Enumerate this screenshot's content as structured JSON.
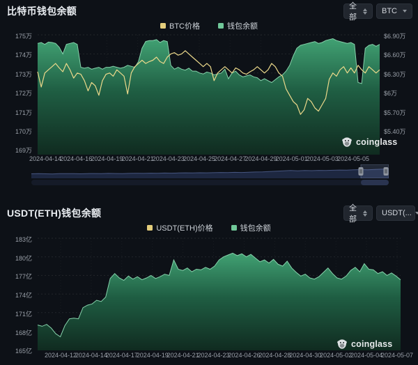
{
  "panels": [
    {
      "title": "比特币钱包余额",
      "controls": {
        "range": "全部",
        "coin": "BTC"
      },
      "legend": [
        {
          "label": "BTC价格",
          "color": "#e3cd7b"
        },
        {
          "label": "钱包余额",
          "color": "#70c899"
        }
      ],
      "watermark": "coinglass"
    },
    {
      "title": "USDT(ETH)钱包余额",
      "controls": {
        "range": "全部",
        "coin": "USDT(..."
      },
      "legend": [
        {
          "label": "USDT(ETH)价格",
          "color": "#e3cd7b"
        },
        {
          "label": "钱包余额",
          "color": "#70c899"
        }
      ],
      "watermark": "coinglass"
    }
  ],
  "icons": {
    "dropdown": "caret-down",
    "range_select": "sort-arrows"
  },
  "chart_data": [
    {
      "type": "area",
      "title": "比特币钱包余额",
      "legend_position": "top",
      "grid": true,
      "x_labels": [
        "2024-04-14",
        "2024-04-16",
        "2024-04-19",
        "2024-04-21",
        "2024-04-23",
        "2024-04-25",
        "2024-04-27",
        "2024-04-29",
        "2024-05-01",
        "2024-05-03",
        "2024-05-05"
      ],
      "y_ticks_left": [
        "175万",
        "174万",
        "173万",
        "172万",
        "171万",
        "170万",
        "169万"
      ],
      "y_ticks_right": [
        "$6.90万",
        "$6.60万",
        "$6.30万",
        "$6万",
        "$5.70万",
        "$5.40万"
      ],
      "y_left_range": [
        169,
        175
      ],
      "y_right_range": [
        5.1,
        6.9
      ],
      "series": [
        {
          "name": "钱包余额",
          "type": "area",
          "color": "#86d2ab",
          "unit": "万",
          "domain": [
            169,
            175
          ],
          "values": [
            174.55,
            174.6,
            174.5,
            174.62,
            174.6,
            174.55,
            174.35,
            174.0,
            174.5,
            174.55,
            174.6,
            174.5,
            173.3,
            173.25,
            173.3,
            173.2,
            173.25,
            173.3,
            173.2,
            173.3,
            173.3,
            173.35,
            173.3,
            173.25,
            173.3,
            173.4,
            173.35,
            173.3,
            173.6,
            174.3,
            174.65,
            174.7,
            174.7,
            174.75,
            174.6,
            174.7,
            174.65,
            173.4,
            173.2,
            173.3,
            173.2,
            173.15,
            173.25,
            173.1,
            173.1,
            173.0,
            172.95,
            173.05,
            173.0,
            172.9,
            172.95,
            173.0,
            173.2,
            172.7,
            173.0,
            173.1,
            172.9,
            172.8,
            172.85,
            172.9,
            172.8,
            172.75,
            172.6,
            172.7,
            172.6,
            172.5,
            172.65,
            172.8,
            172.9,
            173.1,
            173.4,
            173.9,
            174.3,
            174.45,
            174.5,
            174.55,
            174.6,
            174.65,
            174.55,
            174.6,
            174.7,
            174.75,
            174.8,
            174.7,
            174.65,
            174.6,
            174.55,
            174.6,
            174.5,
            172.5,
            172.45,
            174.3,
            174.45,
            174.5,
            174.4,
            174.5
          ]
        },
        {
          "name": "BTC价格",
          "type": "line",
          "color": "#ecd98b",
          "unit": "万USD",
          "domain": [
            5.1,
            6.9
          ],
          "values": [
            6.32,
            6.08,
            6.3,
            6.35,
            6.4,
            6.45,
            6.38,
            6.32,
            6.45,
            6.35,
            6.22,
            6.3,
            6.28,
            6.18,
            6.02,
            6.15,
            6.1,
            5.95,
            6.18,
            6.28,
            6.3,
            6.25,
            6.35,
            6.3,
            6.25,
            5.97,
            6.3,
            6.4,
            6.45,
            6.5,
            6.45,
            6.48,
            6.5,
            6.55,
            6.48,
            6.45,
            6.55,
            6.6,
            6.62,
            6.58,
            6.6,
            6.65,
            6.6,
            6.55,
            6.5,
            6.45,
            6.4,
            6.45,
            6.4,
            6.18,
            6.3,
            6.35,
            6.4,
            6.35,
            6.3,
            6.38,
            6.35,
            6.3,
            6.28,
            6.32,
            6.35,
            6.4,
            6.35,
            6.3,
            6.35,
            6.45,
            6.4,
            6.3,
            6.25,
            6.05,
            5.95,
            5.85,
            5.8,
            5.65,
            5.72,
            5.9,
            5.85,
            5.75,
            5.7,
            5.8,
            5.9,
            6.2,
            6.3,
            6.25,
            6.35,
            6.4,
            6.3,
            6.38,
            6.3,
            6.42,
            6.35,
            6.3,
            6.4,
            6.35,
            6.3,
            6.35
          ]
        }
      ],
      "navigator": {
        "values": [
          0.3,
          0.31,
          0.3,
          0.29,
          0.31,
          0.32,
          0.31,
          0.3,
          0.32,
          0.33,
          0.32,
          0.34,
          0.33,
          0.32,
          0.34,
          0.35,
          0.34,
          0.36,
          0.35,
          0.37,
          0.36,
          0.38,
          0.39,
          0.38,
          0.4,
          0.39,
          0.41,
          0.43,
          0.42,
          0.44,
          0.43,
          0.45,
          0.47,
          0.49,
          0.52,
          0.55,
          0.58,
          0.61,
          0.59,
          0.62,
          0.6,
          0.63,
          0.61,
          0.64,
          0.66,
          0.65,
          0.68,
          0.7,
          0.69,
          0.72,
          0.74,
          0.76
        ],
        "selection": [
          0.922,
          1.0
        ]
      }
    },
    {
      "type": "area",
      "title": "USDT(ETH)钱包余额",
      "legend_position": "top",
      "grid": true,
      "x_labels": [
        "2024-04-12",
        "2024-04-14",
        "2024-04-17",
        "2024-04-19",
        "2024-04-21",
        "2024-04-23",
        "2024-04-26",
        "2024-04-28",
        "2024-04-30",
        "2024-05-02",
        "2024-05-04",
        "2024-05-07"
      ],
      "y_ticks_left": [
        "183亿",
        "180亿",
        "177亿",
        "174亿",
        "171亿",
        "168亿",
        "165亿"
      ],
      "y_left_range": [
        165,
        183
      ],
      "series": [
        {
          "name": "钱包余额",
          "type": "area",
          "color": "#86d2ab",
          "unit": "亿",
          "domain": [
            165,
            183
          ],
          "values": [
            169.0,
            168.8,
            169.1,
            168.5,
            167.6,
            167.1,
            168.9,
            170.0,
            170.1,
            170.0,
            171.8,
            172.2,
            172.4,
            173.0,
            172.8,
            173.5,
            176.5,
            177.3,
            176.6,
            176.2,
            176.9,
            176.4,
            176.8,
            176.3,
            176.6,
            177.0,
            176.5,
            176.8,
            177.2,
            177.0,
            179.5,
            178.0,
            177.8,
            178.2,
            177.6,
            178.0,
            177.9,
            178.3,
            178.0,
            178.5,
            179.5,
            180.0,
            180.3,
            180.6,
            180.2,
            180.5,
            180.0,
            180.4,
            179.8,
            179.2,
            179.5,
            179.0,
            179.6,
            178.8,
            178.5,
            179.3,
            178.2,
            177.5,
            176.9,
            177.2,
            176.6,
            176.4,
            176.8,
            177.5,
            178.2,
            177.3,
            176.6,
            176.4,
            176.9,
            177.8,
            178.3,
            177.6,
            178.9,
            178.0,
            177.9,
            177.3,
            177.6,
            177.0,
            177.4,
            176.9,
            176.3
          ]
        }
      ]
    }
  ]
}
